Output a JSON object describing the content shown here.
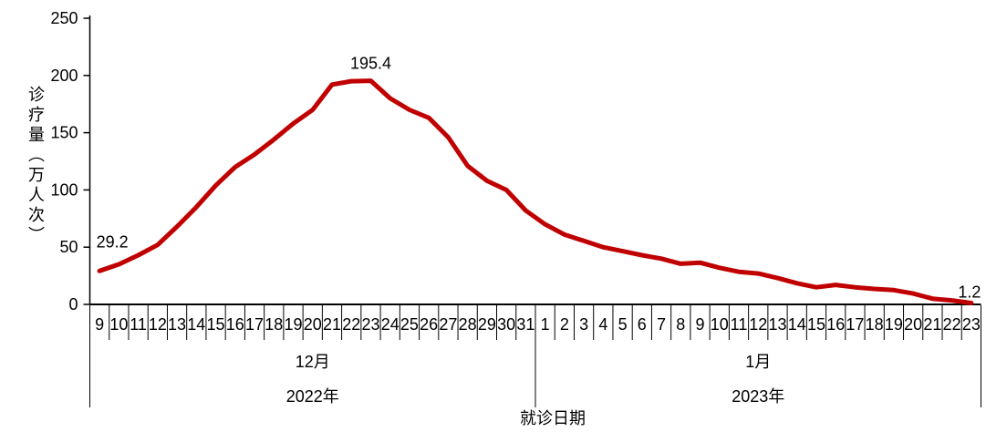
{
  "chart_data": {
    "type": "line",
    "title": "",
    "ylabel": "诊疗量（万人次）",
    "xlabel": "就诊日期",
    "ylim": [
      0,
      250
    ],
    "yticks": [
      0,
      50,
      100,
      150,
      200,
      250
    ],
    "grid": false,
    "legend": false,
    "line_color": "#C00000",
    "axis_color": "#000000",
    "x_groups": [
      {
        "month_label": "12月",
        "year_label": "2022年",
        "days": [
          "9",
          "10",
          "11",
          "12",
          "13",
          "14",
          "15",
          "16",
          "17",
          "18",
          "19",
          "20",
          "21",
          "22",
          "23",
          "24",
          "25",
          "26",
          "27",
          "28",
          "29",
          "30",
          "31"
        ]
      },
      {
        "month_label": "1月",
        "year_label": "2023年",
        "days": [
          "1",
          "2",
          "3",
          "4",
          "5",
          "6",
          "7",
          "8",
          "9",
          "10",
          "11",
          "12",
          "13",
          "14",
          "15",
          "16",
          "17",
          "18",
          "19",
          "20",
          "21",
          "22",
          "23"
        ]
      }
    ],
    "series": [
      {
        "name": "诊疗量",
        "values": [
          29.2,
          35,
          43,
          52,
          68,
          85,
          104,
          120,
          131,
          144,
          158,
          170,
          192,
          195,
          195.4,
          180,
          170,
          163,
          146,
          121,
          108,
          100,
          82,
          70,
          61,
          55.5,
          50,
          46.5,
          43,
          40,
          35.5,
          36.5,
          32,
          28.5,
          27,
          23,
          18.5,
          15,
          17,
          15,
          13.5,
          12.5,
          9.5,
          5,
          3.5,
          1.2
        ]
      }
    ],
    "annotations": [
      {
        "index": 0,
        "label": "29.2"
      },
      {
        "index": 14,
        "label": "195.4"
      },
      {
        "index": 45,
        "label": "1.2"
      }
    ]
  }
}
